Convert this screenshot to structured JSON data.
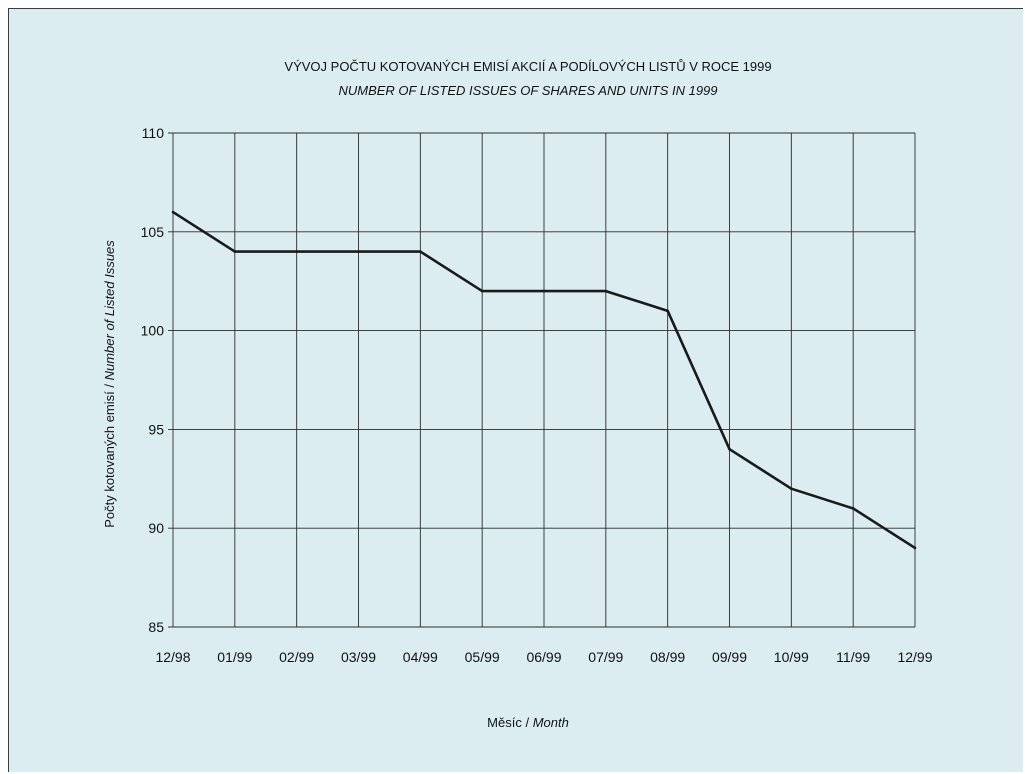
{
  "chart_data": {
    "type": "line",
    "title": "VÝVOJ POČTU KOTOVANÝCH EMISÍ AKCIÍ A PODÍLOVÝCH LISTŮ V ROCE 1999",
    "subtitle": "NUMBER OF LISTED ISSUES OF SHARES AND UNITS IN 1999",
    "xlabel": {
      "cz": "Měsíc",
      "sep": " / ",
      "en": "Month"
    },
    "ylabel": {
      "cz": "Počty kotovaných emisí",
      "sep": " / ",
      "en": "Number of  Listed Issues"
    },
    "categories": [
      "12/98",
      "01/99",
      "02/99",
      "03/99",
      "04/99",
      "05/99",
      "06/99",
      "07/99",
      "08/99",
      "09/99",
      "10/99",
      "11/99",
      "12/99"
    ],
    "series": [
      {
        "values": [
          106,
          104,
          104,
          104,
          104,
          102,
          102,
          102,
          101,
          94,
          92,
          91,
          89
        ],
        "color": "#1a1a1a"
      }
    ],
    "ylim": [
      85,
      110
    ],
    "yticks": [
      85,
      90,
      95,
      100,
      105,
      110
    ],
    "grid": true,
    "colors": {
      "background": "#dcedf1",
      "grid": "#2a2a2a",
      "line": "#1a1a1a"
    }
  }
}
